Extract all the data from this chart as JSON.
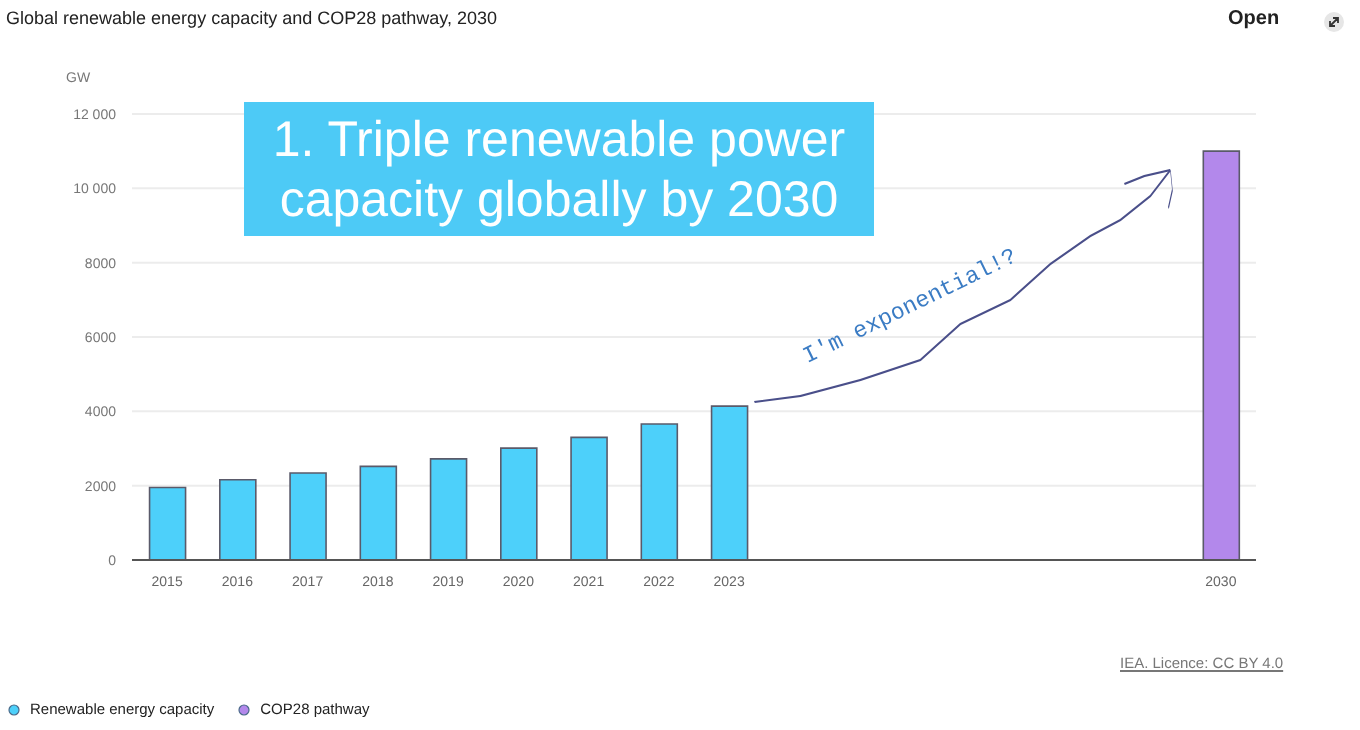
{
  "chart_data": {
    "type": "bar",
    "title": "Global renewable energy capacity and COP28 pathway, 2030",
    "ylabel": "GW",
    "categories": [
      "2015",
      "2016",
      "2017",
      "2018",
      "2019",
      "2020",
      "2021",
      "2022",
      "2023",
      null,
      null,
      null,
      null,
      null,
      null,
      "2030"
    ],
    "series": [
      {
        "name": "Renewable energy capacity",
        "color": "#4dd0fa",
        "values": [
          1950,
          2160,
          2340,
          2520,
          2720,
          3010,
          3300,
          3660,
          4140,
          null,
          null,
          null,
          null,
          null,
          null,
          null
        ]
      },
      {
        "name": "COP28 pathway",
        "color": "#b388eb",
        "values": [
          null,
          null,
          null,
          null,
          null,
          null,
          null,
          null,
          null,
          null,
          null,
          null,
          null,
          null,
          null,
          11000
        ]
      }
    ],
    "stacked": true,
    "ylim": [
      0,
      12000
    ],
    "yticks": [
      0,
      2000,
      4000,
      6000,
      8000,
      {
        "value": 10000,
        "label": "10 000"
      },
      {
        "value": 12000,
        "label": "12 000"
      }
    ],
    "grid": "y",
    "legend": "bottom left",
    "annotations": [
      "1. Triple renewable power capacity globally by 2030",
      "I'm exponential!?",
      "IEA. Licence: CC BY 4.0",
      "Open"
    ]
  }
}
